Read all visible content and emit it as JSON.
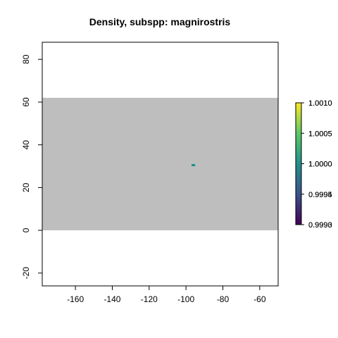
{
  "chart_data": {
    "type": "heatmap",
    "title": "Density, subspp: magnirostris",
    "xlabel": "",
    "ylabel": "",
    "xlim": [
      -178,
      -50
    ],
    "ylim": [
      -26,
      88
    ],
    "x_ticks": [
      -160,
      -140,
      -120,
      -100,
      -80,
      -60
    ],
    "y_ticks": [
      -20,
      0,
      20,
      40,
      60,
      80
    ],
    "x_tick_labels": [
      "-160",
      "-140",
      "-120",
      "-100",
      "-80",
      "-60"
    ],
    "y_tick_labels": [
      "-20",
      "0",
      "20",
      "40",
      "60",
      "80"
    ],
    "background_region": {
      "x": [
        -178,
        -50
      ],
      "y": [
        0,
        62
      ],
      "color": "#bebebe"
    },
    "cells": [
      {
        "x": [
          -97,
          -95
        ],
        "y": [
          30,
          31
        ],
        "value": 1.0,
        "color": "#21908c"
      }
    ],
    "colorbar": {
      "colors": [
        "#440154",
        "#3b528b",
        "#21908c",
        "#5dc863",
        "#fde725"
      ],
      "tick_levels": [
        0,
        0.25,
        0.5,
        0.75,
        1
      ],
      "labels": [
        [
          "0.9990",
          "0.9993"
        ],
        [
          "0.9995",
          "0.9994"
        ],
        [
          "1.0000",
          "1.0000"
        ],
        [
          "1.0005",
          "1.0005"
        ],
        [
          "1.0010",
          "1.0010"
        ]
      ]
    },
    "grid": false,
    "legend": "right"
  }
}
